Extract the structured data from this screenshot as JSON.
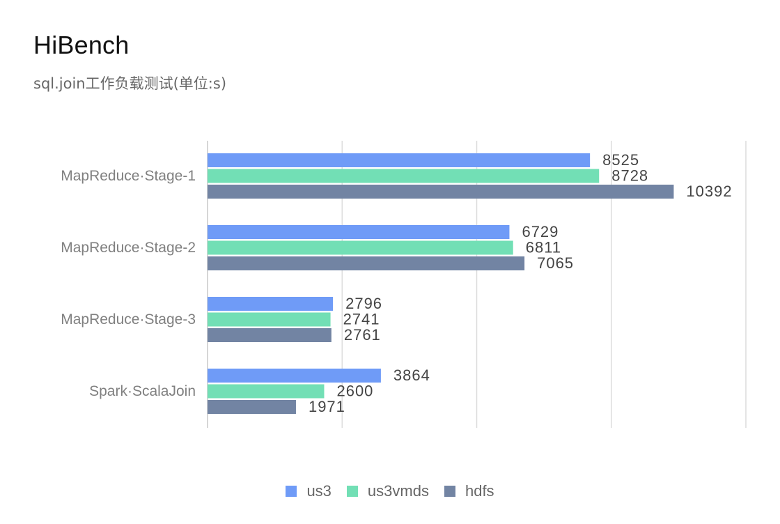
{
  "chart_data": {
    "type": "bar",
    "orientation": "horizontal",
    "title": "HiBench",
    "subtitle": "sql.join工作负载测试(单位:s)",
    "categories": [
      "MapReduce·Stage-1",
      "MapReduce·Stage-2",
      "MapReduce·Stage-3",
      "Spark·ScalaJoin"
    ],
    "series": [
      {
        "name": "us3",
        "color": "#6f9bf7",
        "values": [
          8525,
          6729,
          2796,
          3864
        ]
      },
      {
        "name": "us3vmds",
        "color": "#72dfb5",
        "values": [
          8728,
          6811,
          2741,
          2600
        ]
      },
      {
        "name": "hdfs",
        "color": "#7284a3",
        "values": [
          10392,
          7065,
          2761,
          1971
        ]
      }
    ],
    "xlim": [
      0,
      12000
    ],
    "grid": true,
    "legend_position": "bottom-center"
  }
}
